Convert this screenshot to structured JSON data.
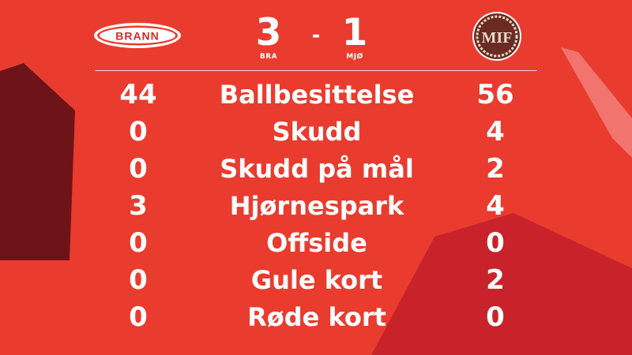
{
  "home": {
    "logo_text": "BRANN",
    "score": "3",
    "abbr": "BRA"
  },
  "away": {
    "logo_text": "MIF",
    "score": "1",
    "abbr": "MJØ"
  },
  "separator": "-",
  "stats": [
    {
      "label": "Ballbesittelse",
      "home": "44",
      "away": "56"
    },
    {
      "label": "Skudd",
      "home": "0",
      "away": "4"
    },
    {
      "label": "Skudd på mål",
      "home": "0",
      "away": "2"
    },
    {
      "label": "Hjørnespark",
      "home": "3",
      "away": "4"
    },
    {
      "label": "Offside",
      "home": "0",
      "away": "0"
    },
    {
      "label": "Gule kort",
      "home": "0",
      "away": "2"
    },
    {
      "label": "Røde kort",
      "home": "0",
      "away": "0"
    }
  ],
  "colors": {
    "background": "#ea3b2f",
    "dark_accent": "#6e1418",
    "mid_accent": "#c8232b",
    "light_accent": "#f37b75",
    "text": "#ffffff",
    "away_logo_brown": "#6a2b22"
  }
}
